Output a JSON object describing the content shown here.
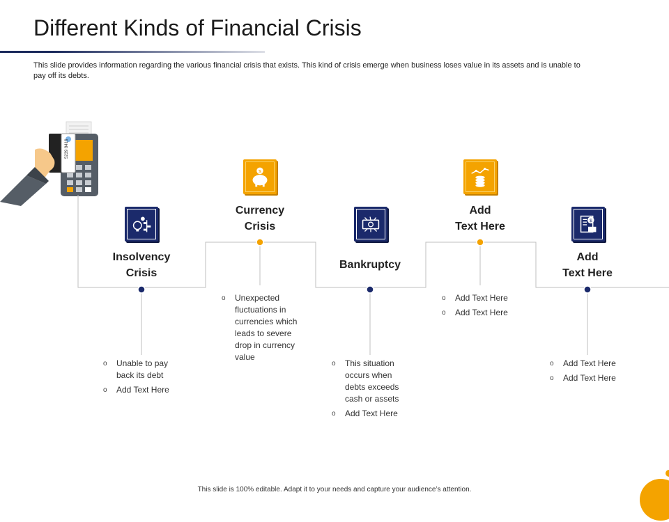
{
  "title": "Different Kinds of Financial Crisis",
  "description": "This slide provides information regarding the various financial crisis that exists. This kind of crisis emerge when  business loses value in its assets and is unable to pay off its debts.",
  "footer": "This slide is 100% editable.  Adapt it to your needs and capture your audience’s attention.",
  "colors": {
    "navy": "#1b2a6b",
    "gold": "#f4a300",
    "line": "#bfbfbf"
  },
  "card_number": "5239 8416",
  "steps": [
    {
      "heading": "Insolvency\nCrisis",
      "icon": "idea-chart-icon",
      "bullets": [
        "Unable to pay back its debt",
        "Add Text Here"
      ]
    },
    {
      "heading": "Currency\nCrisis",
      "icon": "piggy-bank-icon",
      "bullets": [
        "Unexpected fluctuations in currencies which leads to severe drop in currency value"
      ]
    },
    {
      "heading": "Bankruptcy",
      "icon": "cash-bill-icon",
      "bullets": [
        "This situation occurs when debts exceeds cash or assets",
        "Add Text Here"
      ]
    },
    {
      "heading": "Add\nText Here",
      "icon": "coins-growth-icon",
      "bullets": [
        "Add Text Here",
        "Add Text Here"
      ]
    },
    {
      "heading": "Add\nText Here",
      "icon": "financial-report-icon",
      "bullets": [
        "Add Text Here",
        "Add Text Here"
      ]
    }
  ]
}
